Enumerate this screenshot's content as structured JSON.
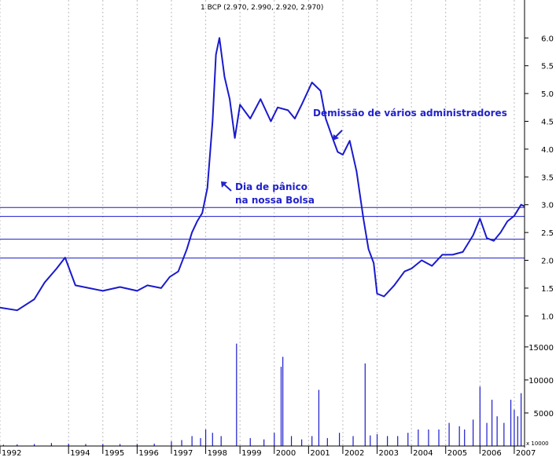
{
  "chart_data": {
    "type": "line",
    "title": "1 BCP (2.970, 2.990, 2.920, 2.970)",
    "price_axis": {
      "ticks": [
        "6.0",
        "5.5",
        "5.0",
        "4.5",
        "4.0",
        "3.5",
        "3.0",
        "2.5",
        "2.0",
        "1.5",
        "1.0"
      ],
      "ylim": [
        0.75,
        6.4
      ]
    },
    "volume_axis": {
      "ticks": [
        "15000",
        "10000",
        "5000"
      ],
      "scale_label": "x 10000",
      "ylim": [
        0,
        17000
      ]
    },
    "x_ticks": [
      "1992",
      "1994",
      "1995",
      "1996",
      "1997",
      "1998",
      "1999",
      "2000",
      "2001",
      "2002",
      "2003",
      "2004",
      "2005",
      "2006",
      "2007"
    ],
    "xlim": [
      1992.0,
      2007.3
    ],
    "horizontal_lines": [
      2.95,
      2.79,
      2.38,
      2.04
    ],
    "annotations": [
      {
        "id": "panic_line1",
        "text": "Dia de pânico"
      },
      {
        "id": "panic_line2",
        "text": "na nossa Bolsa"
      },
      {
        "id": "admins",
        "text": "Demissão de vários administradores"
      }
    ],
    "price_series": {
      "name": "BCP",
      "x": [
        1992.0,
        1992.5,
        1993.0,
        1993.3,
        1993.65,
        1993.9,
        1994.2,
        1994.6,
        1995.0,
        1995.5,
        1996.0,
        1996.3,
        1996.7,
        1996.95,
        1997.2,
        1997.45,
        1997.6,
        1997.75,
        1997.9,
        1998.05,
        1998.2,
        1998.3,
        1998.4,
        1998.55,
        1998.7,
        1998.85,
        1999.0,
        1999.3,
        1999.6,
        1999.9,
        2000.1,
        2000.4,
        2000.6,
        2000.8,
        2000.95,
        2001.1,
        2001.35,
        2001.5,
        2001.7,
        2001.85,
        2002.0,
        2002.2,
        2002.4,
        2002.6,
        2002.75,
        2002.9,
        2003.0,
        2003.2,
        2003.5,
        2003.8,
        2004.0,
        2004.3,
        2004.6,
        2004.9,
        2005.2,
        2005.5,
        2005.8,
        2006.0,
        2006.2,
        2006.4,
        2006.6,
        2006.8,
        2007.0,
        2007.2,
        2007.3
      ],
      "y": [
        1.15,
        1.1,
        1.3,
        1.6,
        1.85,
        2.05,
        1.55,
        1.5,
        1.45,
        1.52,
        1.45,
        1.55,
        1.5,
        1.7,
        1.8,
        2.2,
        2.5,
        2.7,
        2.85,
        3.3,
        4.5,
        5.7,
        6.0,
        5.3,
        4.9,
        4.2,
        4.8,
        4.55,
        4.9,
        4.5,
        4.75,
        4.7,
        4.55,
        4.8,
        5.0,
        5.2,
        5.05,
        4.55,
        4.2,
        3.95,
        3.9,
        4.15,
        3.6,
        2.75,
        2.2,
        1.95,
        1.4,
        1.35,
        1.55,
        1.8,
        1.85,
        2.0,
        1.9,
        2.1,
        2.1,
        2.15,
        2.45,
        2.75,
        2.4,
        2.35,
        2.5,
        2.7,
        2.8,
        3.0,
        2.97
      ]
    },
    "volume_bars": {
      "name": "Volume",
      "x": [
        1992.1,
        1992.5,
        1993.0,
        1993.5,
        1994.0,
        1994.5,
        1995.0,
        1995.5,
        1996.0,
        1996.5,
        1997.0,
        1997.3,
        1997.6,
        1997.85,
        1998.0,
        1998.2,
        1998.45,
        1998.9,
        1999.3,
        1999.7,
        2000.0,
        2000.2,
        2000.25,
        2000.5,
        2000.8,
        2001.1,
        2001.3,
        2001.55,
        2001.9,
        2002.3,
        2002.65,
        2002.8,
        2003.0,
        2003.3,
        2003.6,
        2003.9,
        2004.2,
        2004.5,
        2004.8,
        2005.1,
        2005.4,
        2005.55,
        2005.8,
        2006.0,
        2006.2,
        2006.35,
        2006.5,
        2006.7,
        2006.9,
        2007.0,
        2007.1,
        2007.2
      ],
      "y": [
        200,
        250,
        300,
        450,
        350,
        300,
        300,
        300,
        300,
        350,
        700,
        900,
        1500,
        1200,
        2500,
        2000,
        1500,
        15500,
        1200,
        1000,
        2000,
        12000,
        13500,
        1500,
        1000,
        1500,
        8500,
        1200,
        2000,
        1500,
        12500,
        1600,
        1800,
        1500,
        1500,
        2000,
        2500,
        2500,
        2500,
        3500,
        3000,
        2500,
        4000,
        9000,
        3500,
        7000,
        4500,
        3500,
        7000,
        5500,
        4500,
        8000
      ]
    }
  }
}
